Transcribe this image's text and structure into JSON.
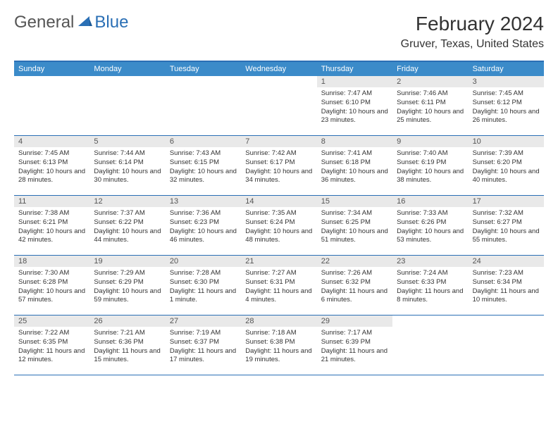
{
  "brand": {
    "word1": "General",
    "word2": "Blue",
    "logo_color": "#2a6fb5"
  },
  "title": "February 2024",
  "location": "Gruver, Texas, United States",
  "colors": {
    "header_bg": "#3b8bc9",
    "border": "#2a6fb5",
    "daynum_bg": "#e9e9e9",
    "text": "#333333"
  },
  "weekdays": [
    "Sunday",
    "Monday",
    "Tuesday",
    "Wednesday",
    "Thursday",
    "Friday",
    "Saturday"
  ],
  "weeks": [
    [
      null,
      null,
      null,
      null,
      {
        "n": "1",
        "sr": "Sunrise: 7:47 AM",
        "ss": "Sunset: 6:10 PM",
        "dl": "Daylight: 10 hours and 23 minutes."
      },
      {
        "n": "2",
        "sr": "Sunrise: 7:46 AM",
        "ss": "Sunset: 6:11 PM",
        "dl": "Daylight: 10 hours and 25 minutes."
      },
      {
        "n": "3",
        "sr": "Sunrise: 7:45 AM",
        "ss": "Sunset: 6:12 PM",
        "dl": "Daylight: 10 hours and 26 minutes."
      }
    ],
    [
      {
        "n": "4",
        "sr": "Sunrise: 7:45 AM",
        "ss": "Sunset: 6:13 PM",
        "dl": "Daylight: 10 hours and 28 minutes."
      },
      {
        "n": "5",
        "sr": "Sunrise: 7:44 AM",
        "ss": "Sunset: 6:14 PM",
        "dl": "Daylight: 10 hours and 30 minutes."
      },
      {
        "n": "6",
        "sr": "Sunrise: 7:43 AM",
        "ss": "Sunset: 6:15 PM",
        "dl": "Daylight: 10 hours and 32 minutes."
      },
      {
        "n": "7",
        "sr": "Sunrise: 7:42 AM",
        "ss": "Sunset: 6:17 PM",
        "dl": "Daylight: 10 hours and 34 minutes."
      },
      {
        "n": "8",
        "sr": "Sunrise: 7:41 AM",
        "ss": "Sunset: 6:18 PM",
        "dl": "Daylight: 10 hours and 36 minutes."
      },
      {
        "n": "9",
        "sr": "Sunrise: 7:40 AM",
        "ss": "Sunset: 6:19 PM",
        "dl": "Daylight: 10 hours and 38 minutes."
      },
      {
        "n": "10",
        "sr": "Sunrise: 7:39 AM",
        "ss": "Sunset: 6:20 PM",
        "dl": "Daylight: 10 hours and 40 minutes."
      }
    ],
    [
      {
        "n": "11",
        "sr": "Sunrise: 7:38 AM",
        "ss": "Sunset: 6:21 PM",
        "dl": "Daylight: 10 hours and 42 minutes."
      },
      {
        "n": "12",
        "sr": "Sunrise: 7:37 AM",
        "ss": "Sunset: 6:22 PM",
        "dl": "Daylight: 10 hours and 44 minutes."
      },
      {
        "n": "13",
        "sr": "Sunrise: 7:36 AM",
        "ss": "Sunset: 6:23 PM",
        "dl": "Daylight: 10 hours and 46 minutes."
      },
      {
        "n": "14",
        "sr": "Sunrise: 7:35 AM",
        "ss": "Sunset: 6:24 PM",
        "dl": "Daylight: 10 hours and 48 minutes."
      },
      {
        "n": "15",
        "sr": "Sunrise: 7:34 AM",
        "ss": "Sunset: 6:25 PM",
        "dl": "Daylight: 10 hours and 51 minutes."
      },
      {
        "n": "16",
        "sr": "Sunrise: 7:33 AM",
        "ss": "Sunset: 6:26 PM",
        "dl": "Daylight: 10 hours and 53 minutes."
      },
      {
        "n": "17",
        "sr": "Sunrise: 7:32 AM",
        "ss": "Sunset: 6:27 PM",
        "dl": "Daylight: 10 hours and 55 minutes."
      }
    ],
    [
      {
        "n": "18",
        "sr": "Sunrise: 7:30 AM",
        "ss": "Sunset: 6:28 PM",
        "dl": "Daylight: 10 hours and 57 minutes."
      },
      {
        "n": "19",
        "sr": "Sunrise: 7:29 AM",
        "ss": "Sunset: 6:29 PM",
        "dl": "Daylight: 10 hours and 59 minutes."
      },
      {
        "n": "20",
        "sr": "Sunrise: 7:28 AM",
        "ss": "Sunset: 6:30 PM",
        "dl": "Daylight: 11 hours and 1 minute."
      },
      {
        "n": "21",
        "sr": "Sunrise: 7:27 AM",
        "ss": "Sunset: 6:31 PM",
        "dl": "Daylight: 11 hours and 4 minutes."
      },
      {
        "n": "22",
        "sr": "Sunrise: 7:26 AM",
        "ss": "Sunset: 6:32 PM",
        "dl": "Daylight: 11 hours and 6 minutes."
      },
      {
        "n": "23",
        "sr": "Sunrise: 7:24 AM",
        "ss": "Sunset: 6:33 PM",
        "dl": "Daylight: 11 hours and 8 minutes."
      },
      {
        "n": "24",
        "sr": "Sunrise: 7:23 AM",
        "ss": "Sunset: 6:34 PM",
        "dl": "Daylight: 11 hours and 10 minutes."
      }
    ],
    [
      {
        "n": "25",
        "sr": "Sunrise: 7:22 AM",
        "ss": "Sunset: 6:35 PM",
        "dl": "Daylight: 11 hours and 12 minutes."
      },
      {
        "n": "26",
        "sr": "Sunrise: 7:21 AM",
        "ss": "Sunset: 6:36 PM",
        "dl": "Daylight: 11 hours and 15 minutes."
      },
      {
        "n": "27",
        "sr": "Sunrise: 7:19 AM",
        "ss": "Sunset: 6:37 PM",
        "dl": "Daylight: 11 hours and 17 minutes."
      },
      {
        "n": "28",
        "sr": "Sunrise: 7:18 AM",
        "ss": "Sunset: 6:38 PM",
        "dl": "Daylight: 11 hours and 19 minutes."
      },
      {
        "n": "29",
        "sr": "Sunrise: 7:17 AM",
        "ss": "Sunset: 6:39 PM",
        "dl": "Daylight: 11 hours and 21 minutes."
      },
      null,
      null
    ]
  ]
}
